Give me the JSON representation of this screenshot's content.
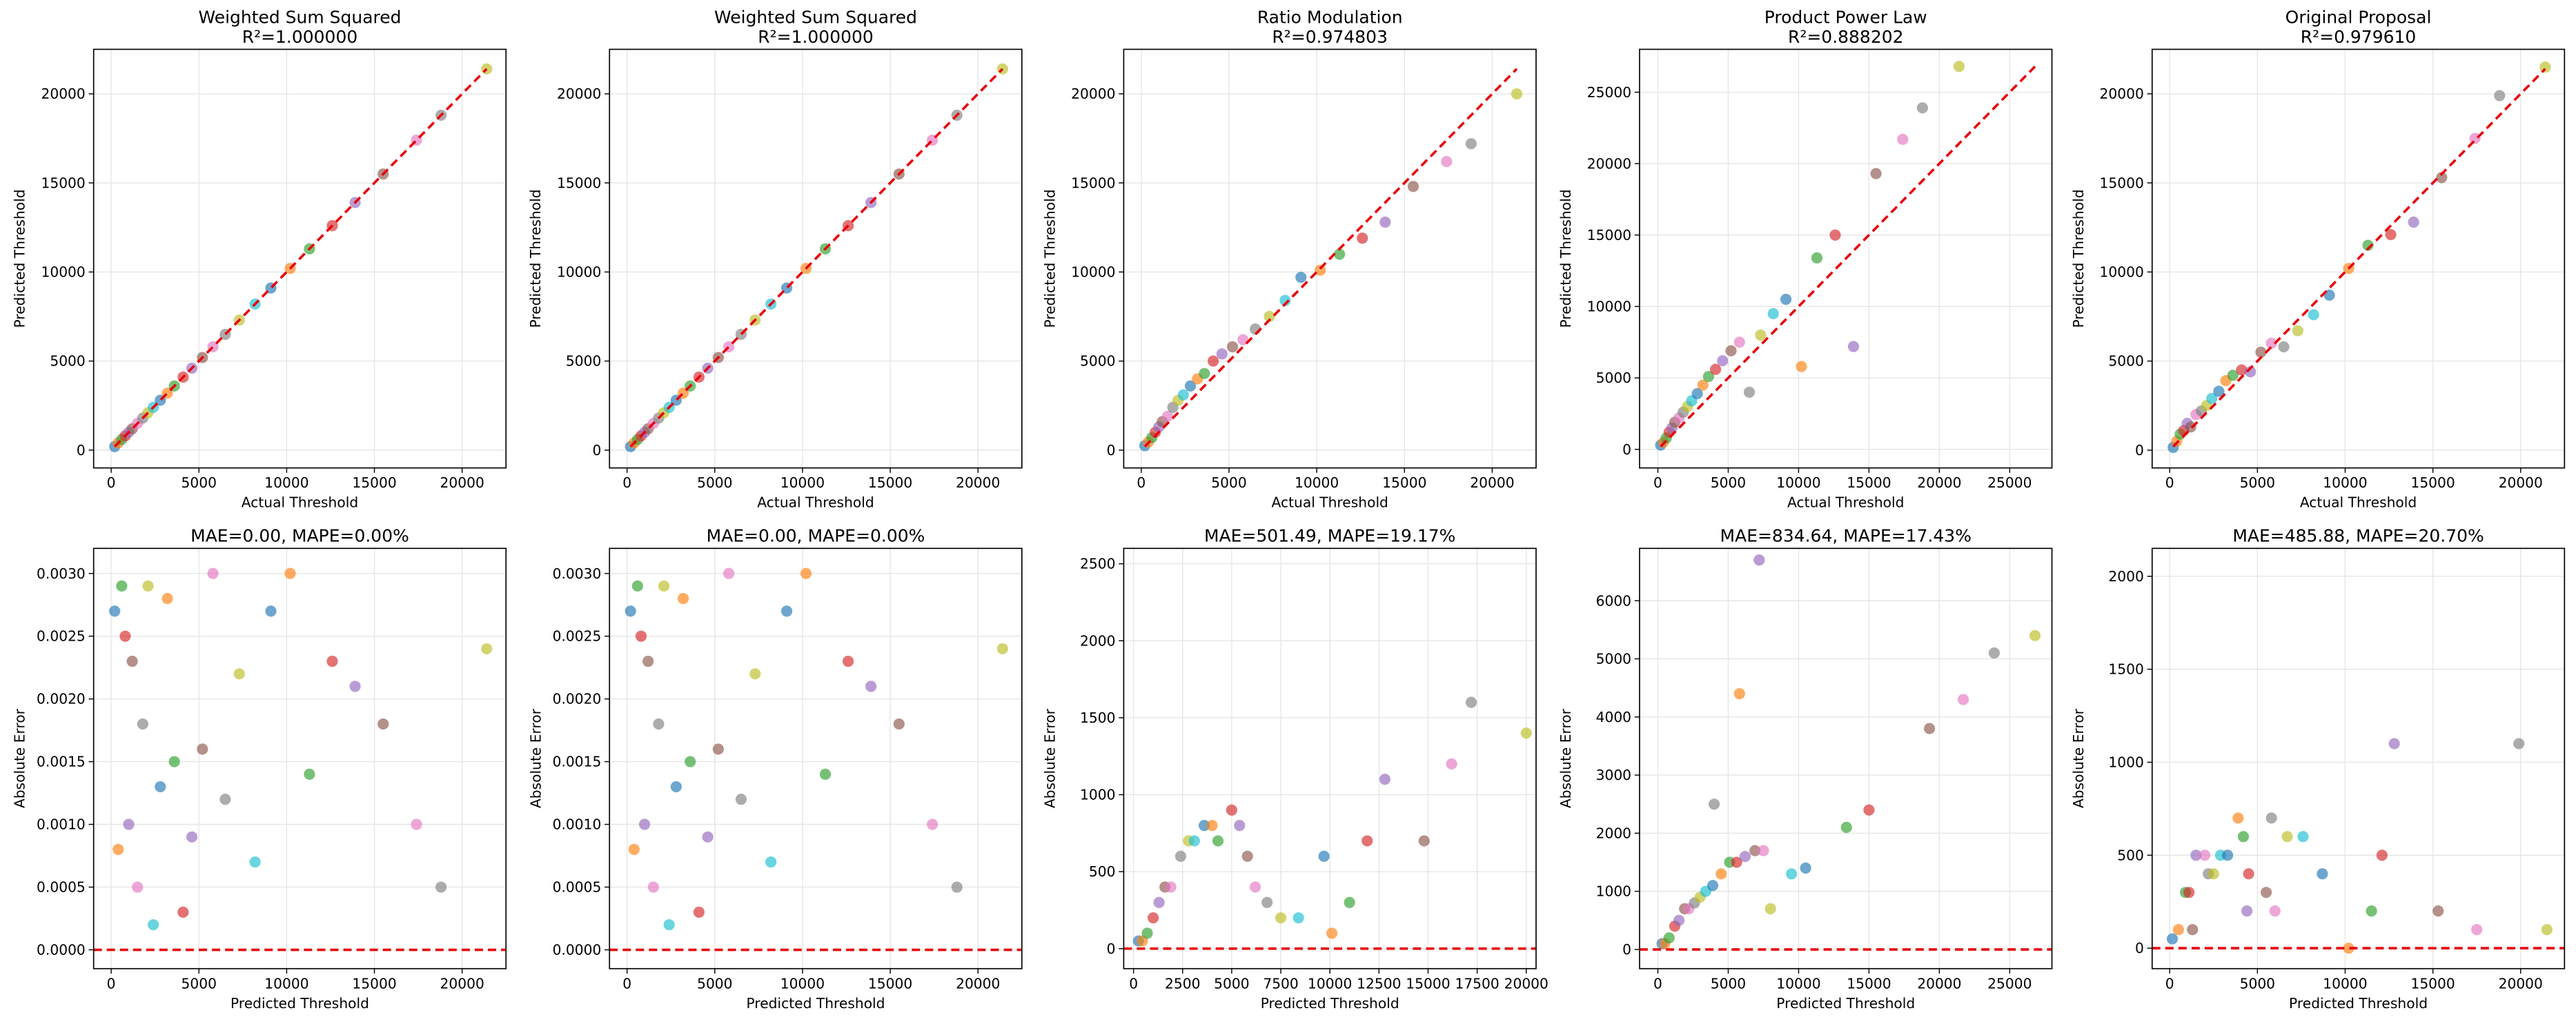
{
  "chart_data": [
    {
      "type": "scatter",
      "title": "Weighted Sum Squared",
      "subtitle": "R²=1.000000",
      "xlabel": "Actual Threshold",
      "ylabel": "Predicted Threshold",
      "x": [
        200,
        400,
        600,
        800,
        1000,
        1200,
        1500,
        1800,
        2100,
        2400,
        2800,
        3200,
        3600,
        4100,
        4600,
        5200,
        5800,
        6500,
        7300,
        8200,
        9100,
        10200,
        11300,
        12600,
        13900,
        15500,
        17400,
        18800,
        21400
      ],
      "values": [
        200,
        400,
        600,
        800,
        1000,
        1200,
        1500,
        1800,
        2100,
        2400,
        2800,
        3200,
        3600,
        4100,
        4600,
        5200,
        5800,
        6500,
        7300,
        8200,
        9100,
        10200,
        11300,
        12600,
        13900,
        15500,
        17400,
        18800,
        21400
      ],
      "xlim": [
        -1000,
        22500
      ],
      "ylim": [
        -1000,
        22500
      ],
      "xticks": [
        0,
        5000,
        10000,
        15000,
        20000
      ],
      "yticks": [
        0,
        5000,
        10000,
        15000,
        20000
      ],
      "reference_line": {
        "x": [
          200,
          21400
        ],
        "y": [
          200,
          21400
        ]
      },
      "grid": true,
      "line_color": "#e8000b",
      "colors": [
        "#1f77b4",
        "#ff7f0e",
        "#2ca02c",
        "#d62728",
        "#9467bd",
        "#8c564b",
        "#e377c2",
        "#7f7f7f",
        "#bcbd22",
        "#17becf"
      ]
    },
    {
      "type": "scatter",
      "title": "Weighted Sum Squared",
      "subtitle": "R²=1.000000",
      "xlabel": "Actual Threshold",
      "ylabel": "Predicted Threshold",
      "x": [
        200,
        400,
        600,
        800,
        1000,
        1200,
        1500,
        1800,
        2100,
        2400,
        2800,
        3200,
        3600,
        4100,
        4600,
        5200,
        5800,
        6500,
        7300,
        8200,
        9100,
        10200,
        11300,
        12600,
        13900,
        15500,
        17400,
        18800,
        21400
      ],
      "values": [
        200,
        400,
        600,
        800,
        1000,
        1200,
        1500,
        1800,
        2100,
        2400,
        2800,
        3200,
        3600,
        4100,
        4600,
        5200,
        5800,
        6500,
        7300,
        8200,
        9100,
        10200,
        11300,
        12600,
        13900,
        15500,
        17400,
        18800,
        21400
      ],
      "xlim": [
        -1000,
        22500
      ],
      "ylim": [
        -1000,
        22500
      ],
      "xticks": [
        0,
        5000,
        10000,
        15000,
        20000
      ],
      "yticks": [
        0,
        5000,
        10000,
        15000,
        20000
      ],
      "reference_line": {
        "x": [
          200,
          21400
        ],
        "y": [
          200,
          21400
        ]
      },
      "grid": true,
      "line_color": "#e8000b",
      "colors": [
        "#1f77b4",
        "#ff7f0e",
        "#2ca02c",
        "#d62728",
        "#9467bd",
        "#8c564b",
        "#e377c2",
        "#7f7f7f",
        "#bcbd22",
        "#17becf"
      ]
    },
    {
      "type": "scatter",
      "title": "Ratio Modulation",
      "subtitle": "R²=0.974803",
      "xlabel": "Actual Threshold",
      "ylabel": "Predicted Threshold",
      "x": [
        200,
        400,
        600,
        800,
        1000,
        1200,
        1500,
        1800,
        2100,
        2400,
        2800,
        3200,
        3600,
        4100,
        4600,
        5200,
        5800,
        6500,
        7300,
        8200,
        9100,
        10200,
        11300,
        12600,
        13900,
        15500,
        17400,
        18800,
        21400
      ],
      "values": [
        250,
        450,
        700,
        1000,
        1300,
        1600,
        1900,
        2400,
        2800,
        3100,
        3600,
        4000,
        4300,
        5000,
        5400,
        5800,
        6200,
        6800,
        7500,
        8400,
        9700,
        10100,
        11000,
        11900,
        12800,
        14800,
        16200,
        17200,
        20000
      ],
      "xlim": [
        -1000,
        22500
      ],
      "ylim": [
        -1000,
        22500
      ],
      "xticks": [
        0,
        5000,
        10000,
        15000,
        20000
      ],
      "yticks": [
        0,
        5000,
        10000,
        15000,
        20000
      ],
      "reference_line": {
        "x": [
          200,
          21400
        ],
        "y": [
          200,
          21400
        ]
      },
      "grid": true,
      "line_color": "#e8000b",
      "colors": [
        "#1f77b4",
        "#ff7f0e",
        "#2ca02c",
        "#d62728",
        "#9467bd",
        "#8c564b",
        "#e377c2",
        "#7f7f7f",
        "#bcbd22",
        "#17becf"
      ]
    },
    {
      "type": "scatter",
      "title": "Product Power Law",
      "subtitle": "R²=0.888202",
      "xlabel": "Actual Threshold",
      "ylabel": "Predicted Threshold",
      "x": [
        200,
        400,
        600,
        800,
        1000,
        1200,
        1500,
        1800,
        2100,
        2400,
        2800,
        3200,
        3600,
        4100,
        4600,
        5200,
        5800,
        6500,
        7300,
        8200,
        9100,
        10200,
        11300,
        12600,
        13900,
        15500,
        17400,
        18800,
        21400
      ],
      "values": [
        300,
        500,
        800,
        1200,
        1500,
        1900,
        2200,
        2600,
        3000,
        3400,
        3900,
        4500,
        5100,
        5600,
        6200,
        6900,
        7500,
        4000,
        8000,
        9500,
        10500,
        5800,
        13400,
        15000,
        7200,
        19300,
        21700,
        23900,
        26800
      ],
      "xlim": [
        -1300,
        28000
      ],
      "ylim": [
        -1300,
        28000
      ],
      "xticks": [
        0,
        5000,
        10000,
        15000,
        20000,
        25000
      ],
      "yticks": [
        0,
        5000,
        10000,
        15000,
        20000,
        25000
      ],
      "reference_line": {
        "x": [
          200,
          26800
        ],
        "y": [
          200,
          26800
        ]
      },
      "grid": true,
      "line_color": "#e8000b",
      "colors": [
        "#1f77b4",
        "#ff7f0e",
        "#2ca02c",
        "#d62728",
        "#9467bd",
        "#8c564b",
        "#e377c2",
        "#7f7f7f",
        "#bcbd22",
        "#17becf"
      ]
    },
    {
      "type": "scatter",
      "title": "Original Proposal",
      "subtitle": "R²=0.979610",
      "xlabel": "Actual Threshold",
      "ylabel": "Predicted Threshold",
      "x": [
        200,
        400,
        600,
        800,
        1000,
        1200,
        1500,
        1800,
        2100,
        2400,
        2800,
        3200,
        3600,
        4100,
        4600,
        5200,
        5800,
        6500,
        7300,
        8200,
        9100,
        10200,
        11300,
        12600,
        13900,
        15500,
        17400,
        18800,
        21400
      ],
      "values": [
        150,
        500,
        900,
        1100,
        1500,
        1300,
        2000,
        2200,
        2500,
        2900,
        3300,
        3900,
        4200,
        4500,
        4400,
        5500,
        6000,
        5800,
        6700,
        7600,
        8700,
        10200,
        11500,
        12100,
        12800,
        15300,
        17500,
        19900,
        21500
      ],
      "xlim": [
        -1000,
        22500
      ],
      "ylim": [
        -1000,
        22500
      ],
      "xticks": [
        0,
        5000,
        10000,
        15000,
        20000
      ],
      "yticks": [
        0,
        5000,
        10000,
        15000,
        20000
      ],
      "reference_line": {
        "x": [
          200,
          21400
        ],
        "y": [
          200,
          21400
        ]
      },
      "grid": true,
      "line_color": "#e8000b",
      "colors": [
        "#1f77b4",
        "#ff7f0e",
        "#2ca02c",
        "#d62728",
        "#9467bd",
        "#8c564b",
        "#e377c2",
        "#7f7f7f",
        "#bcbd22",
        "#17becf"
      ]
    },
    {
      "type": "scatter",
      "title": "MAE=0.00, MAPE=0.00%",
      "xlabel": "Predicted Threshold",
      "ylabel": "Absolute Error",
      "x": [
        200,
        400,
        600,
        800,
        1000,
        1200,
        1500,
        1800,
        2100,
        2400,
        2800,
        3200,
        3600,
        4100,
        4600,
        5200,
        5800,
        6500,
        7300,
        8200,
        9100,
        10200,
        11300,
        12600,
        13900,
        15500,
        17400,
        18800,
        21400
      ],
      "values": [
        0.0027,
        0.0008,
        0.0029,
        0.0025,
        0.001,
        0.0023,
        0.0005,
        0.0018,
        0.0029,
        0.0002,
        0.0013,
        0.0028,
        0.0015,
        0.0003,
        0.0009,
        0.0016,
        0.003,
        0.0012,
        0.0022,
        0.0007,
        0.0027,
        0.003,
        0.0014,
        0.0023,
        0.0021,
        0.0018,
        0.001,
        0.0005,
        0.0024
      ],
      "xlim": [
        -1000,
        22500
      ],
      "ylim": [
        -0.00015,
        0.0032
      ],
      "xticks": [
        0,
        5000,
        10000,
        15000,
        20000
      ],
      "yticks": [
        {
          "value": 0,
          "label": "0.0000"
        },
        {
          "value": 0.0005,
          "label": "0.0005"
        },
        {
          "value": 0.001,
          "label": "0.0010"
        },
        {
          "value": 0.0015,
          "label": "0.0015"
        },
        {
          "value": 0.002,
          "label": "0.0020"
        },
        {
          "value": 0.0025,
          "label": "0.0025"
        },
        {
          "value": 0.003,
          "label": "0.0030"
        }
      ],
      "hline": 0,
      "grid": true,
      "line_color": "#e8000b",
      "colors": [
        "#1f77b4",
        "#ff7f0e",
        "#2ca02c",
        "#d62728",
        "#9467bd",
        "#8c564b",
        "#e377c2",
        "#7f7f7f",
        "#bcbd22",
        "#17becf"
      ]
    },
    {
      "type": "scatter",
      "title": "MAE=0.00, MAPE=0.00%",
      "xlabel": "Predicted Threshold",
      "ylabel": "Absolute Error",
      "x": [
        200,
        400,
        600,
        800,
        1000,
        1200,
        1500,
        1800,
        2100,
        2400,
        2800,
        3200,
        3600,
        4100,
        4600,
        5200,
        5800,
        6500,
        7300,
        8200,
        9100,
        10200,
        11300,
        12600,
        13900,
        15500,
        17400,
        18800,
        21400
      ],
      "values": [
        0.0027,
        0.0008,
        0.0029,
        0.0025,
        0.001,
        0.0023,
        0.0005,
        0.0018,
        0.0029,
        0.0002,
        0.0013,
        0.0028,
        0.0015,
        0.0003,
        0.0009,
        0.0016,
        0.003,
        0.0012,
        0.0022,
        0.0007,
        0.0027,
        0.003,
        0.0014,
        0.0023,
        0.0021,
        0.0018,
        0.001,
        0.0005,
        0.0024
      ],
      "xlim": [
        -1000,
        22500
      ],
      "ylim": [
        -0.00015,
        0.0032
      ],
      "xticks": [
        0,
        5000,
        10000,
        15000,
        20000
      ],
      "yticks": [
        {
          "value": 0,
          "label": "0.0000"
        },
        {
          "value": 0.0005,
          "label": "0.0005"
        },
        {
          "value": 0.001,
          "label": "0.0010"
        },
        {
          "value": 0.0015,
          "label": "0.0015"
        },
        {
          "value": 0.002,
          "label": "0.0020"
        },
        {
          "value": 0.0025,
          "label": "0.0025"
        },
        {
          "value": 0.003,
          "label": "0.0030"
        }
      ],
      "hline": 0,
      "grid": true,
      "line_color": "#e8000b",
      "colors": [
        "#1f77b4",
        "#ff7f0e",
        "#2ca02c",
        "#d62728",
        "#9467bd",
        "#8c564b",
        "#e377c2",
        "#7f7f7f",
        "#bcbd22",
        "#17becf"
      ]
    },
    {
      "type": "scatter",
      "title": "MAE=501.49, MAPE=19.17%",
      "xlabel": "Predicted Threshold",
      "ylabel": "Absolute Error",
      "x": [
        250,
        450,
        700,
        1000,
        1300,
        1600,
        1900,
        2400,
        2800,
        3100,
        3600,
        4000,
        4300,
        5000,
        5400,
        5800,
        6200,
        6800,
        7500,
        8400,
        9700,
        10100,
        11000,
        11900,
        12800,
        14800,
        16200,
        17200,
        20000
      ],
      "values": [
        50,
        50,
        100,
        200,
        300,
        400,
        400,
        600,
        700,
        700,
        800,
        800,
        700,
        900,
        800,
        600,
        400,
        300,
        200,
        200,
        600,
        100,
        300,
        700,
        1100,
        700,
        1200,
        1600,
        1400
      ],
      "xlim": [
        -500,
        20500
      ],
      "ylim": [
        -130,
        2600
      ],
      "xticks": [
        0,
        2500,
        5000,
        7500,
        10000,
        12500,
        15000,
        17500,
        20000
      ],
      "yticks": [
        0,
        500,
        1000,
        1500,
        2000,
        2500
      ],
      "hline": 0,
      "grid": true,
      "line_color": "#e8000b",
      "colors": [
        "#1f77b4",
        "#ff7f0e",
        "#2ca02c",
        "#d62728",
        "#9467bd",
        "#8c564b",
        "#e377c2",
        "#7f7f7f",
        "#bcbd22",
        "#17becf"
      ]
    },
    {
      "type": "scatter",
      "title": "MAE=834.64, MAPE=17.43%",
      "xlabel": "Predicted Threshold",
      "ylabel": "Absolute Error",
      "x": [
        300,
        500,
        800,
        1200,
        1500,
        1900,
        2200,
        2600,
        3000,
        3400,
        3900,
        4500,
        5100,
        5600,
        6200,
        6900,
        7500,
        4000,
        8000,
        9500,
        10500,
        5800,
        13400,
        15000,
        7200,
        19300,
        21700,
        23900,
        26800
      ],
      "values": [
        100,
        100,
        200,
        400,
        500,
        700,
        700,
        800,
        900,
        1000,
        1100,
        1300,
        1500,
        1500,
        1600,
        1700,
        1700,
        2500,
        700,
        1300,
        1400,
        4400,
        2100,
        2400,
        6700,
        3800,
        4300,
        5100,
        5400
      ],
      "xlim": [
        -1300,
        28000
      ],
      "ylim": [
        -330,
        6900
      ],
      "xticks": [
        0,
        5000,
        10000,
        15000,
        20000,
        25000
      ],
      "yticks": [
        0,
        1000,
        2000,
        3000,
        4000,
        5000,
        6000
      ],
      "hline": 0,
      "grid": true,
      "line_color": "#e8000b",
      "colors": [
        "#1f77b4",
        "#ff7f0e",
        "#2ca02c",
        "#d62728",
        "#9467bd",
        "#8c564b",
        "#e377c2",
        "#7f7f7f",
        "#bcbd22",
        "#17becf"
      ]
    },
    {
      "type": "scatter",
      "title": "MAE=485.88, MAPE=20.70%",
      "xlabel": "Predicted Threshold",
      "ylabel": "Absolute Error",
      "x": [
        150,
        500,
        900,
        1100,
        1500,
        1300,
        2000,
        2200,
        2500,
        2900,
        3300,
        3900,
        4200,
        4500,
        4400,
        5500,
        6000,
        5800,
        6700,
        7600,
        8700,
        10200,
        11500,
        12100,
        12800,
        15300,
        17500,
        19900,
        21500
      ],
      "values": [
        50,
        100,
        300,
        300,
        500,
        100,
        500,
        400,
        400,
        500,
        500,
        700,
        600,
        400,
        200,
        300,
        200,
        700,
        600,
        600,
        400,
        0,
        200,
        500,
        1100,
        200,
        100,
        1100,
        100
      ],
      "xlim": [
        -1000,
        22500
      ],
      "ylim": [
        -110,
        2150
      ],
      "xticks": [
        0,
        5000,
        10000,
        15000,
        20000
      ],
      "yticks": [
        0,
        500,
        1000,
        1500,
        2000
      ],
      "hline": 0,
      "grid": true,
      "line_color": "#e8000b",
      "colors": [
        "#1f77b4",
        "#ff7f0e",
        "#2ca02c",
        "#d62728",
        "#9467bd",
        "#8c564b",
        "#e377c2",
        "#7f7f7f",
        "#bcbd22",
        "#17becf"
      ]
    }
  ]
}
